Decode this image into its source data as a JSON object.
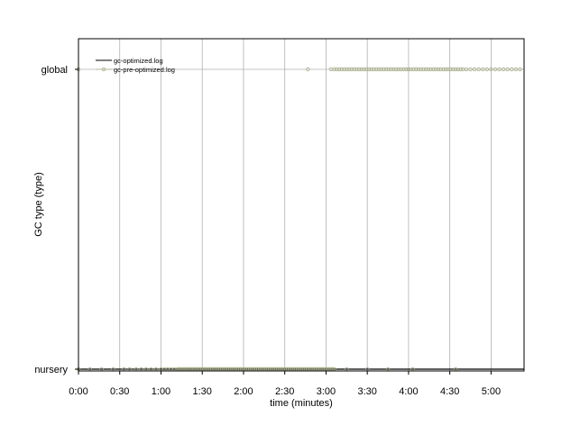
{
  "chart_data": {
    "type": "scatter",
    "title": "",
    "xlabel": "time (minutes)",
    "ylabel": "GC type (type)",
    "xlim": [
      0,
      5.4
    ],
    "x_ticks": [
      0,
      0.5,
      1,
      1.5,
      2,
      2.5,
      3,
      3.5,
      4,
      4.5,
      5
    ],
    "x_tick_labels": [
      "0:00",
      "0:30",
      "1:00",
      "1:30",
      "2:00",
      "2:30",
      "3:00",
      "3:30",
      "4:00",
      "4:30",
      "5:00"
    ],
    "categories": [
      "nursery",
      "global"
    ],
    "y_tick_labels": [
      "global",
      "nursery"
    ],
    "grid": "vertical",
    "legend": {
      "placement": "top-left",
      "entries": [
        "gc-optimized.log",
        "gc-pre-optimized.log"
      ]
    },
    "series": [
      {
        "name": "gc-optimized.log",
        "style": "line",
        "color": "#000000",
        "segments": [
          {
            "category": "nursery",
            "x": [
              0,
              5.4
            ]
          }
        ]
      },
      {
        "name": "gc-pre-optimized.log",
        "style": "circle",
        "color": "#a8b08a",
        "points": [
          {
            "category": "global",
            "x": [
              0.0,
              2.78,
              3.06,
              3.1,
              3.13,
              3.16,
              3.19,
              3.22,
              3.25,
              3.28,
              3.31,
              3.34,
              3.37,
              3.4,
              3.43,
              3.46,
              3.49,
              3.52,
              3.55,
              3.58,
              3.61,
              3.64,
              3.67,
              3.7,
              3.73,
              3.76,
              3.79,
              3.82,
              3.85,
              3.88,
              3.91,
              3.94,
              3.97,
              4.0,
              4.03,
              4.06,
              4.09,
              4.12,
              4.15,
              4.18,
              4.21,
              4.24,
              4.27,
              4.3,
              4.33,
              4.36,
              4.39,
              4.42,
              4.45,
              4.48,
              4.51,
              4.54,
              4.57,
              4.6,
              4.63,
              4.66,
              4.7,
              4.75,
              4.8,
              4.85,
              4.9,
              4.95,
              5.0,
              5.05,
              5.1,
              5.15,
              5.2,
              5.25,
              5.3,
              5.35
            ]
          },
          {
            "category": "nursery",
            "x": [
              0.0,
              0.14,
              0.28,
              0.42,
              0.55,
              0.62,
              0.7,
              0.76,
              0.82,
              0.88,
              0.94,
              1.0,
              1.04,
              1.08,
              1.12,
              1.16,
              1.2,
              1.22,
              1.24,
              1.26,
              1.28,
              1.3,
              1.32,
              1.34,
              1.36,
              1.38,
              1.4,
              1.42,
              1.44,
              1.46,
              1.48,
              1.5,
              1.52,
              1.54,
              1.56,
              1.58,
              1.6,
              1.62,
              1.64,
              1.66,
              1.68,
              1.7,
              1.72,
              1.74,
              1.76,
              1.78,
              1.8,
              1.82,
              1.84,
              1.86,
              1.88,
              1.9,
              1.92,
              1.94,
              1.96,
              1.98,
              2.0,
              2.02,
              2.04,
              2.06,
              2.08,
              2.1,
              2.12,
              2.14,
              2.16,
              2.18,
              2.2,
              2.22,
              2.24,
              2.26,
              2.28,
              2.3,
              2.32,
              2.34,
              2.36,
              2.38,
              2.4,
              2.42,
              2.44,
              2.46,
              2.48,
              2.5,
              2.52,
              2.54,
              2.56,
              2.58,
              2.6,
              2.62,
              2.64,
              2.66,
              2.68,
              2.7,
              2.72,
              2.74,
              2.76,
              2.78,
              2.8,
              2.82,
              2.84,
              2.86,
              2.88,
              2.9,
              2.92,
              2.94,
              2.96,
              2.98,
              3.0,
              3.02,
              3.04,
              3.06,
              3.08,
              3.1,
              3.25,
              3.5,
              3.75,
              4.05,
              4.57
            ]
          }
        ]
      }
    ]
  }
}
